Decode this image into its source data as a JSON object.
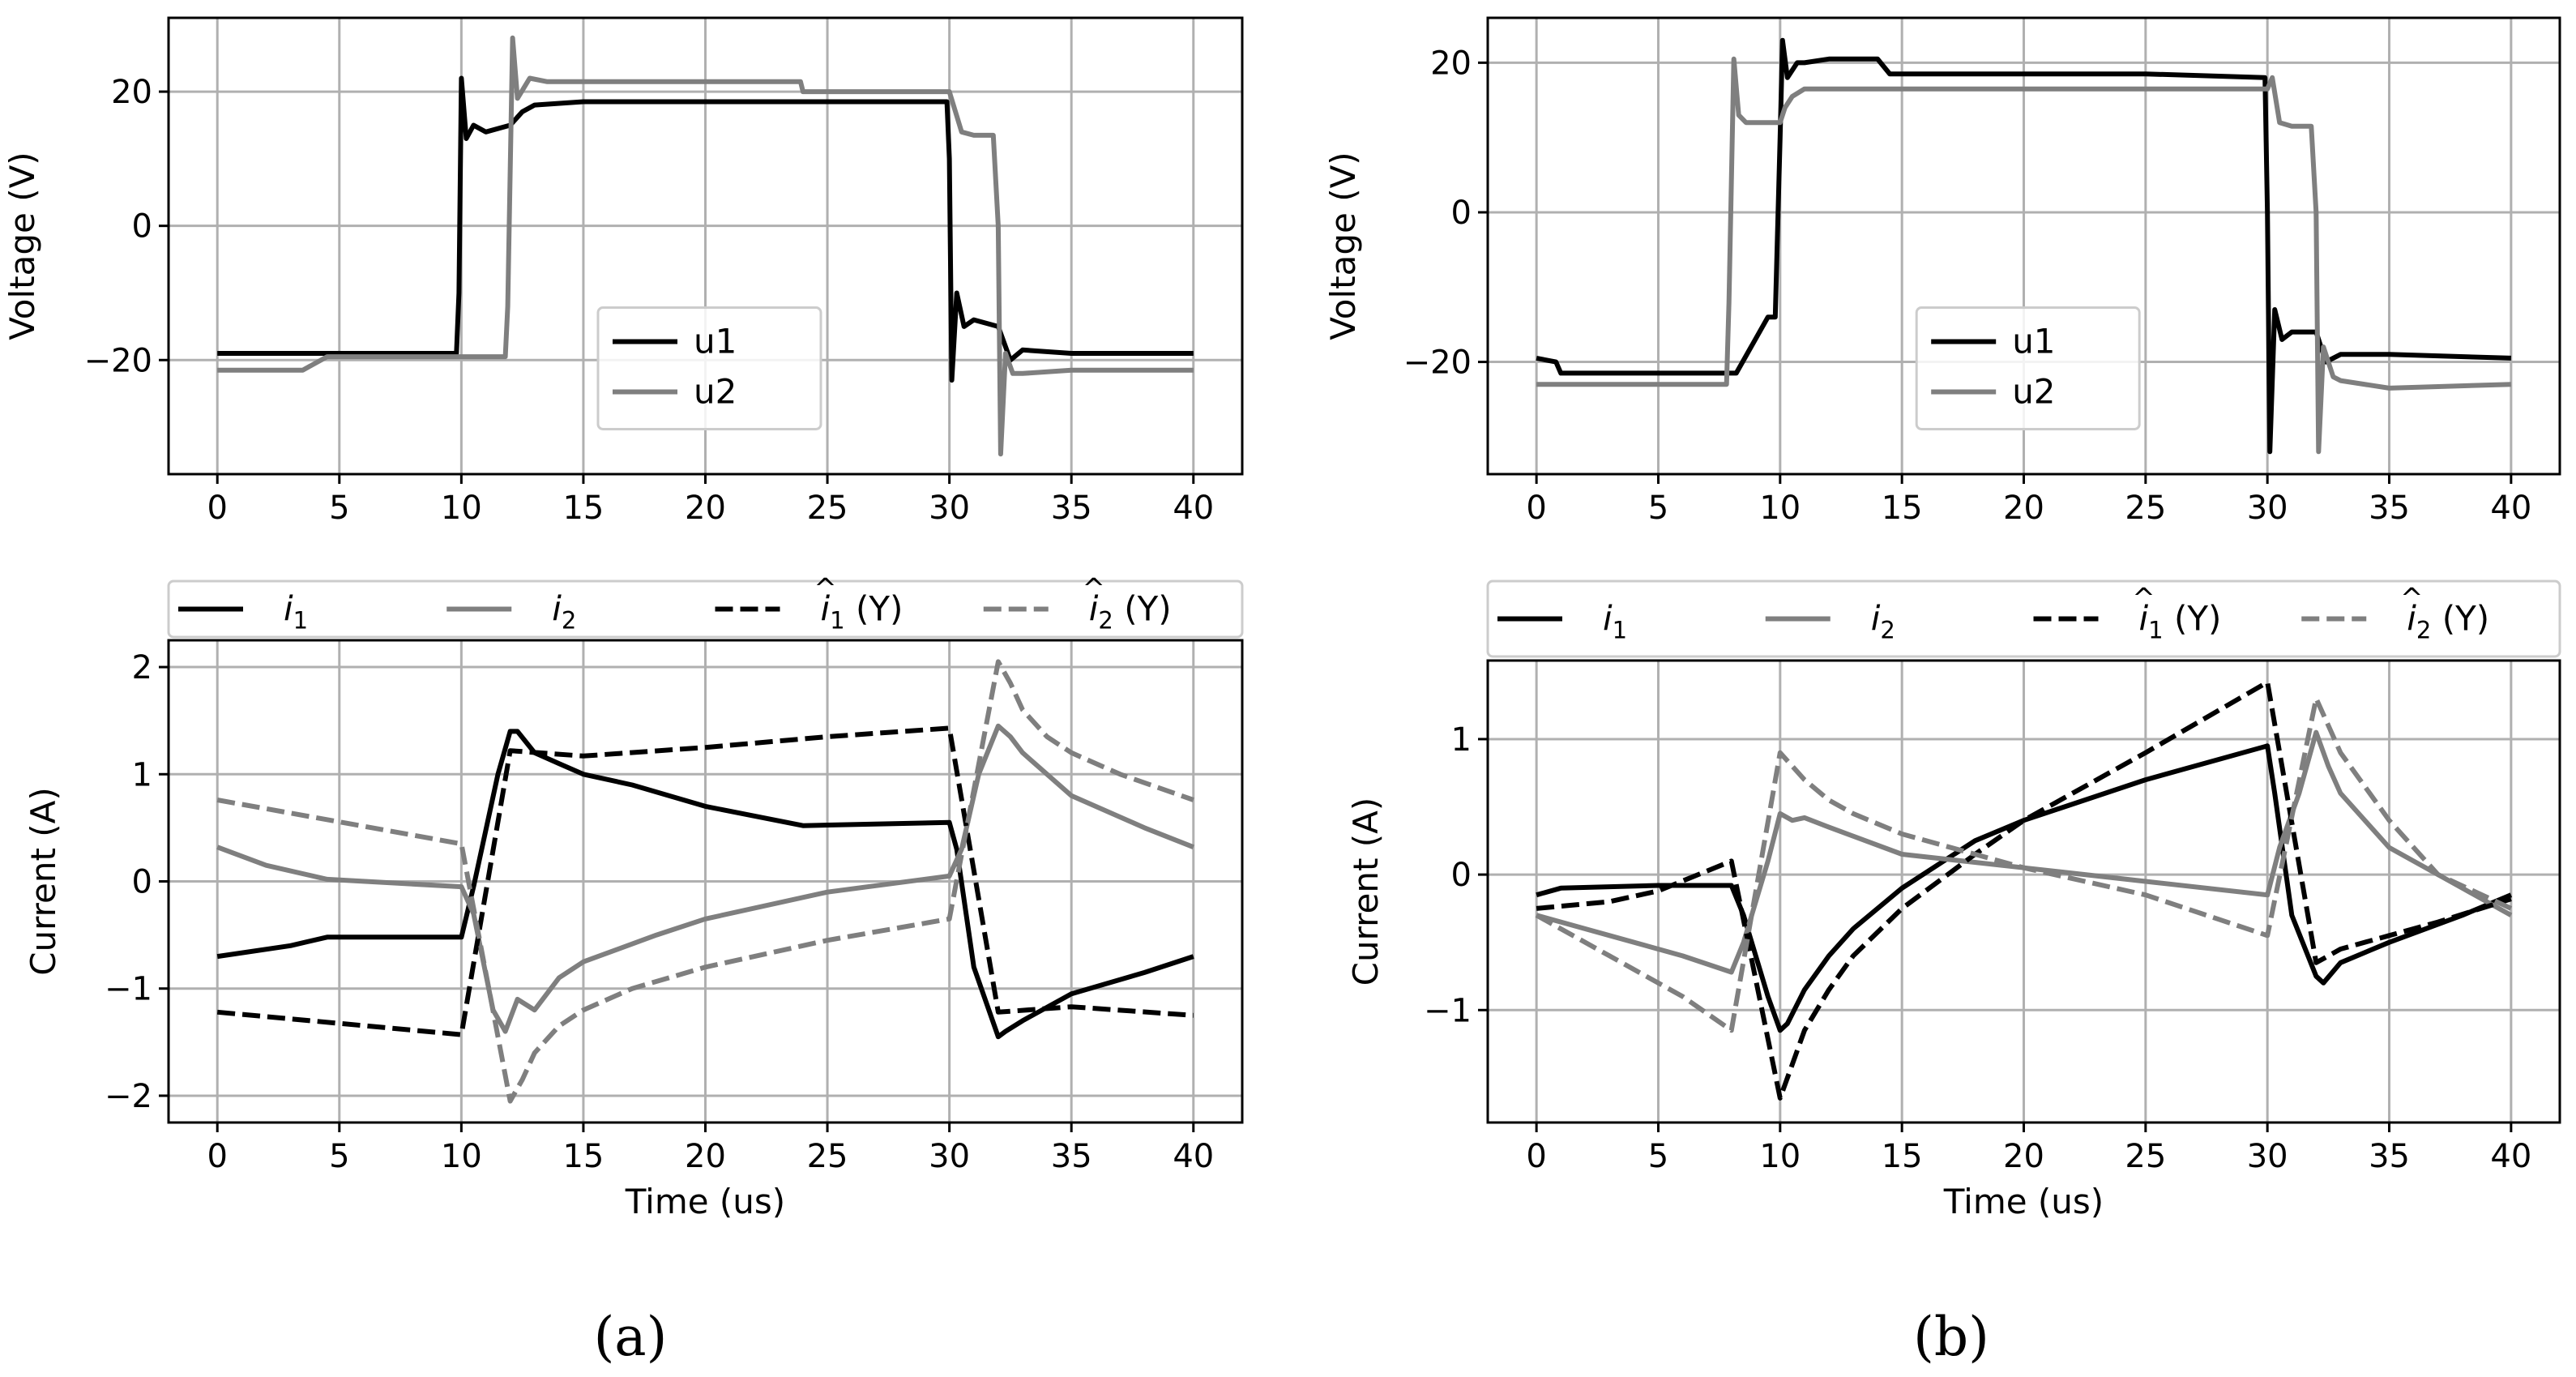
{
  "chart_data": [
    {
      "id": "a_voltage",
      "type": "line",
      "panel": "a",
      "title": "",
      "xlabel": "",
      "ylabel": "Voltage (V)",
      "xlim": [
        -2,
        42
      ],
      "ylim": [
        -37,
        31
      ],
      "xticks": [
        0,
        5,
        10,
        15,
        20,
        25,
        30,
        35,
        40
      ],
      "xtick_labels": [
        "0",
        "5",
        "10",
        "15",
        "20",
        "25",
        "30",
        "35",
        "40"
      ],
      "yticks": [
        -20,
        0,
        20
      ],
      "ytick_labels": [
        "−20",
        "0",
        "20"
      ],
      "grid": true,
      "legend": {
        "placement": "lower-center",
        "entries": [
          "u1",
          "u2"
        ]
      },
      "series": [
        {
          "name": "u1",
          "color": "#000000",
          "dash": "solid",
          "x": [
            0,
            9.8,
            9.9,
            10.0,
            10.2,
            10.5,
            11,
            12,
            12.5,
            13,
            15,
            20,
            25,
            29.9,
            30.0,
            30.1,
            30.3,
            30.6,
            31,
            32,
            32.5,
            33,
            35,
            40
          ],
          "y": [
            -19,
            -19,
            -10,
            22,
            13,
            15,
            14,
            15,
            17,
            18,
            18.5,
            18.5,
            18.5,
            18.5,
            10,
            -23,
            -10,
            -15,
            -14,
            -15,
            -20,
            -18.5,
            -19,
            -19
          ]
        },
        {
          "name": "u2",
          "color": "#7f7f7f",
          "dash": "solid",
          "x": [
            0,
            3.5,
            4.5,
            11.8,
            11.9,
            12.1,
            12.3,
            12.8,
            13.5,
            14,
            20,
            23.9,
            24,
            30,
            30.5,
            31,
            31.8,
            32.0,
            32.1,
            32.3,
            32.6,
            33,
            35,
            40
          ],
          "y": [
            -21.5,
            -21.5,
            -19.5,
            -19.5,
            -12,
            28,
            19,
            22,
            21.5,
            21.5,
            21.5,
            21.5,
            20,
            20,
            14,
            13.5,
            13.5,
            0,
            -34,
            -19,
            -22,
            -22,
            -21.5,
            -21.5
          ]
        }
      ]
    },
    {
      "id": "a_current",
      "type": "line",
      "panel": "a",
      "title": "",
      "xlabel": "Time (us)",
      "ylabel": "Current (A)",
      "xlim": [
        -2,
        42
      ],
      "ylim": [
        -2.25,
        2.25
      ],
      "xticks": [
        0,
        5,
        10,
        15,
        20,
        25,
        30,
        35,
        40
      ],
      "xtick_labels": [
        "0",
        "5",
        "10",
        "15",
        "20",
        "25",
        "30",
        "35",
        "40"
      ],
      "yticks": [
        -2,
        -1,
        0,
        1,
        2
      ],
      "ytick_labels": [
        "−2",
        "−1",
        "0",
        "1",
        "2"
      ],
      "grid": true,
      "legend": {
        "placement": "top-outside",
        "entries": [
          {
            "base": "i",
            "sub": "1",
            "hat": false,
            "suffix": ""
          },
          {
            "base": "i",
            "sub": "2",
            "hat": false,
            "suffix": ""
          },
          {
            "base": "i",
            "sub": "1",
            "hat": true,
            "suffix": " (Y)"
          },
          {
            "base": "i",
            "sub": "2",
            "hat": true,
            "suffix": " (Y)"
          }
        ]
      },
      "series": [
        {
          "name": "i1",
          "color": "#000000",
          "dash": "solid",
          "x": [
            0,
            3,
            4.5,
            10,
            10.5,
            11.5,
            12,
            12.3,
            13,
            14,
            15,
            17,
            20,
            24,
            30,
            30.3,
            31,
            32,
            32.3,
            33,
            35,
            38,
            40
          ],
          "y": [
            -0.7,
            -0.6,
            -0.52,
            -0.52,
            -0.05,
            1.0,
            1.4,
            1.4,
            1.2,
            1.1,
            1.0,
            0.9,
            0.7,
            0.52,
            0.55,
            0.3,
            -0.8,
            -1.45,
            -1.4,
            -1.3,
            -1.05,
            -0.85,
            -0.7
          ]
        },
        {
          "name": "i2",
          "color": "#7f7f7f",
          "dash": "solid",
          "x": [
            0,
            2,
            4.5,
            10,
            10.5,
            11.3,
            11.8,
            12.3,
            13,
            14,
            15,
            18,
            20,
            25,
            30,
            30.5,
            31.2,
            32,
            32.5,
            33,
            35,
            38,
            40
          ],
          "y": [
            0.32,
            0.15,
            0.02,
            -0.05,
            -0.3,
            -1.2,
            -1.4,
            -1.1,
            -1.2,
            -0.9,
            -0.75,
            -0.5,
            -0.35,
            -0.1,
            0.05,
            0.3,
            1.0,
            1.45,
            1.35,
            1.2,
            0.8,
            0.5,
            0.32
          ]
        },
        {
          "name": "i1_hat",
          "color": "#000000",
          "dash": "dashed",
          "x": [
            0,
            10,
            12,
            15,
            20,
            25,
            30,
            32,
            35,
            40
          ],
          "y": [
            -1.22,
            -1.43,
            1.22,
            1.17,
            1.25,
            1.35,
            1.43,
            -1.22,
            -1.17,
            -1.25
          ]
        },
        {
          "name": "i2_hat",
          "color": "#7f7f7f",
          "dash": "dashed",
          "x": [
            0,
            10,
            12,
            12.5,
            13,
            14,
            15,
            17,
            20,
            25,
            30,
            32,
            32.5,
            33,
            34,
            35,
            37,
            40
          ],
          "y": [
            0.76,
            0.35,
            -2.05,
            -1.85,
            -1.6,
            -1.35,
            -1.2,
            -1.0,
            -0.8,
            -0.55,
            -0.35,
            2.05,
            1.85,
            1.6,
            1.35,
            1.2,
            1.0,
            0.76
          ]
        }
      ]
    },
    {
      "id": "b_voltage",
      "type": "line",
      "panel": "b",
      "title": "",
      "xlabel": "",
      "ylabel": "Voltage (V)",
      "xlim": [
        -2,
        42
      ],
      "ylim": [
        -35,
        26
      ],
      "xticks": [
        0,
        5,
        10,
        15,
        20,
        25,
        30,
        35,
        40
      ],
      "xtick_labels": [
        "0",
        "5",
        "10",
        "15",
        "20",
        "25",
        "30",
        "35",
        "40"
      ],
      "yticks": [
        -20,
        0,
        20
      ],
      "ytick_labels": [
        "−20",
        "0",
        "20"
      ],
      "grid": true,
      "legend": {
        "placement": "lower-center",
        "entries": [
          "u1",
          "u2"
        ]
      },
      "series": [
        {
          "name": "u1",
          "color": "#000000",
          "dash": "solid",
          "x": [
            0,
            0.8,
            1,
            2,
            8,
            8.2,
            9.5,
            9.8,
            10.0,
            10.1,
            10.3,
            10.7,
            11,
            12,
            14,
            14.5,
            15,
            20,
            25,
            29.9,
            30.0,
            30.1,
            30.3,
            30.6,
            31,
            32,
            32.4,
            33,
            35,
            40
          ],
          "y": [
            -19.5,
            -20,
            -21.5,
            -21.5,
            -21.5,
            -21.5,
            -14,
            -14,
            10,
            23,
            18,
            20,
            20,
            20.5,
            20.5,
            18.5,
            18.5,
            18.5,
            18.5,
            18,
            0,
            -32,
            -13,
            -17,
            -16,
            -16,
            -20,
            -19,
            -19,
            -19.5
          ]
        },
        {
          "name": "u2",
          "color": "#7f7f7f",
          "dash": "solid",
          "x": [
            0,
            7.8,
            7.9,
            8.1,
            8.3,
            8.6,
            9,
            9.5,
            10,
            10.2,
            10.5,
            11,
            15,
            20,
            25,
            30,
            30.2,
            30.5,
            31,
            31.8,
            32.0,
            32.1,
            32.3,
            32.7,
            33,
            35,
            40
          ],
          "y": [
            -23,
            -23,
            -12,
            20.5,
            13,
            12,
            12,
            12,
            12,
            14,
            15.5,
            16.5,
            16.5,
            16.5,
            16.5,
            16.5,
            18,
            12,
            11.5,
            11.5,
            0,
            -32,
            -18,
            -22,
            -22.5,
            -23.5,
            -23
          ]
        }
      ]
    },
    {
      "id": "b_current",
      "type": "line",
      "panel": "b",
      "title": "",
      "xlabel": "Time (us)",
      "ylabel": "Current (A)",
      "xlim": [
        -2,
        42
      ],
      "ylim": [
        -1.83,
        1.58
      ],
      "xticks": [
        0,
        5,
        10,
        15,
        20,
        25,
        30,
        35,
        40
      ],
      "xtick_labels": [
        "0",
        "5",
        "10",
        "15",
        "20",
        "25",
        "30",
        "35",
        "40"
      ],
      "yticks": [
        -1,
        0,
        1
      ],
      "ytick_labels": [
        "−1",
        "0",
        "1"
      ],
      "grid": true,
      "legend": {
        "placement": "top-outside",
        "entries": [
          {
            "base": "i",
            "sub": "1",
            "hat": false,
            "suffix": ""
          },
          {
            "base": "i",
            "sub": "2",
            "hat": false,
            "suffix": ""
          },
          {
            "base": "i",
            "sub": "1",
            "hat": true,
            "suffix": " (Y)"
          },
          {
            "base": "i",
            "sub": "2",
            "hat": true,
            "suffix": " (Y)"
          }
        ]
      },
      "series": [
        {
          "name": "i1",
          "color": "#000000",
          "dash": "solid",
          "x": [
            0,
            1,
            5,
            8,
            8.5,
            9.5,
            10,
            10.3,
            11,
            12,
            13,
            15,
            18,
            20,
            25,
            30,
            30.3,
            31,
            32,
            32.3,
            33,
            35,
            38,
            40
          ],
          "y": [
            -0.15,
            -0.1,
            -0.08,
            -0.08,
            -0.3,
            -0.9,
            -1.15,
            -1.1,
            -0.85,
            -0.6,
            -0.4,
            -0.1,
            0.25,
            0.4,
            0.7,
            0.95,
            0.6,
            -0.3,
            -0.75,
            -0.8,
            -0.65,
            -0.5,
            -0.3,
            -0.15
          ]
        },
        {
          "name": "i2",
          "color": "#7f7f7f",
          "dash": "solid",
          "x": [
            0,
            3,
            6,
            8,
            8.5,
            9.5,
            10,
            10.5,
            11,
            12,
            15,
            20,
            25,
            30,
            30.5,
            31.3,
            32,
            32.5,
            33,
            35,
            38,
            40
          ],
          "y": [
            -0.3,
            -0.45,
            -0.6,
            -0.72,
            -0.5,
            0.1,
            0.45,
            0.4,
            0.42,
            0.35,
            0.15,
            0.05,
            -0.05,
            -0.15,
            0.2,
            0.6,
            1.05,
            0.8,
            0.6,
            0.2,
            -0.1,
            -0.3
          ]
        },
        {
          "name": "i1_hat",
          "color": "#000000",
          "dash": "dashed",
          "x": [
            0,
            3,
            5,
            8,
            10,
            10.5,
            11,
            12,
            13,
            15,
            18,
            20,
            25,
            30,
            32,
            32.5,
            33,
            35,
            37,
            40
          ],
          "y": [
            -0.25,
            -0.2,
            -0.12,
            0.1,
            -1.65,
            -1.4,
            -1.15,
            -0.85,
            -0.6,
            -0.25,
            0.15,
            0.4,
            0.9,
            1.42,
            -0.65,
            -0.6,
            -0.55,
            -0.45,
            -0.35,
            -0.18
          ]
        },
        {
          "name": "i2_hat",
          "color": "#7f7f7f",
          "dash": "dashed",
          "x": [
            0,
            3,
            6,
            8,
            10,
            10.5,
            11,
            12,
            13,
            15,
            18,
            20,
            25,
            30,
            32,
            32.5,
            33,
            35,
            37,
            40
          ],
          "y": [
            -0.3,
            -0.6,
            -0.9,
            -1.15,
            0.9,
            0.8,
            0.7,
            0.55,
            0.45,
            0.3,
            0.15,
            0.05,
            -0.15,
            -0.45,
            1.3,
            1.1,
            0.9,
            0.4,
            0.0,
            -0.25
          ]
        }
      ]
    }
  ],
  "panel_labels": {
    "a": "(a)",
    "b": "(b)"
  }
}
